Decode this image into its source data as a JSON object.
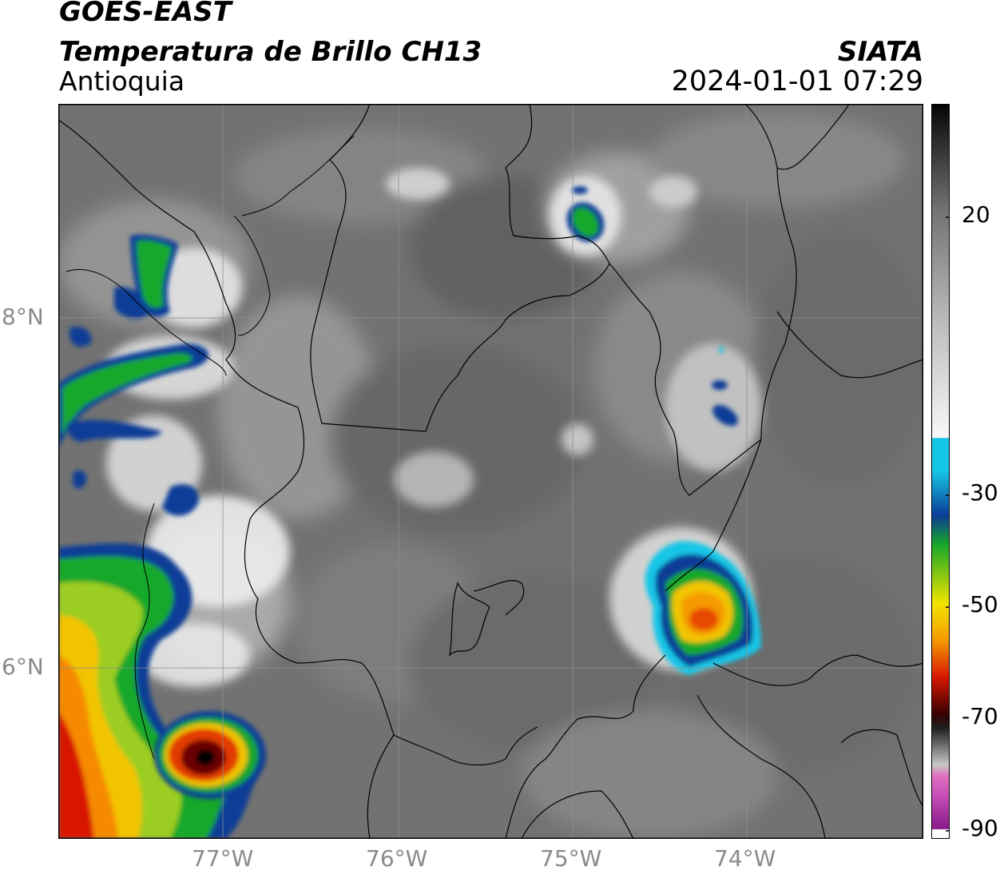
{
  "header": {
    "satellite": "GOES-EAST",
    "product": "Temperatura de Brillo CH13",
    "region": "Antioquia",
    "organization": "SIATA",
    "timestamp": "2024-01-01 07:29"
  },
  "axes": {
    "longitude_labels": [
      "77°W",
      "76°W",
      "75°W",
      "74°W"
    ],
    "latitude_labels": [
      "8°N",
      "6°N"
    ]
  },
  "colorbar": {
    "ticks": [
      "20",
      "-30",
      "-50",
      "-70",
      "-90"
    ],
    "colors": {
      "warm_gray": "#6e6e6e",
      "white": "#f2f2f2",
      "cyan": "#16c6e6",
      "blue": "#0b3c96",
      "green": "#17a829",
      "yellow": "#f2e400",
      "orange": "#f59a00",
      "red": "#d81800",
      "dark_red": "#3a0000",
      "black": "#050505",
      "pink": "#e070c0",
      "purple": "#8a1a8a"
    }
  }
}
